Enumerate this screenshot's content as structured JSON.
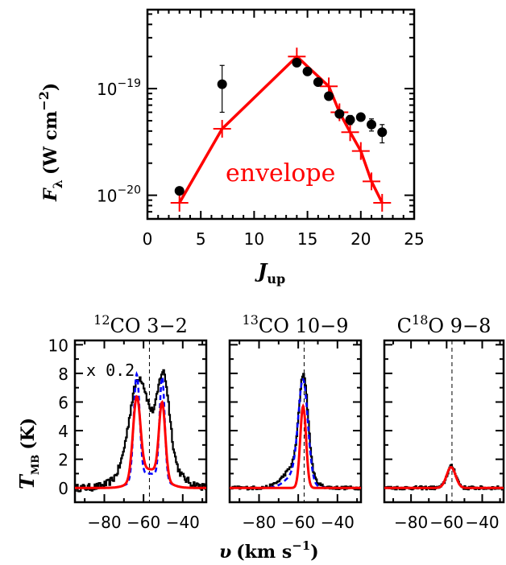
{
  "chart_data": [
    {
      "type": "scatter",
      "panel": "sed",
      "xlabel_main": "J",
      "xlabel_sub": "up",
      "ylabel_main": "F",
      "ylabel_sub": "λ",
      "ylabel_unit": "(W cm",
      "ylabel_sup": "−2",
      "ylabel_close": ")",
      "xlim": [
        0,
        25
      ],
      "ylim": [
        6e-21,
        5.5e-19
      ],
      "yscale": "log",
      "xticks": [
        0,
        5,
        10,
        15,
        20,
        25
      ],
      "xtick_labels": [
        "0",
        "5",
        "10",
        "15",
        "20",
        "25"
      ],
      "yticks": [
        1e-20,
        1e-19
      ],
      "ytick_labels": [
        {
          "base": "10",
          "exp": "−20"
        },
        {
          "base": "10",
          "exp": "−19"
        }
      ],
      "annotation": "envelope",
      "observed": {
        "x": [
          3,
          7,
          14,
          15,
          16,
          17,
          18,
          19,
          20,
          21,
          22
        ],
        "y": [
          1.1e-20,
          1.1e-19,
          1.75e-19,
          1.45e-19,
          1.15e-19,
          8.5e-20,
          5.8e-20,
          5.1e-20,
          5.4e-20,
          4.6e-20,
          3.9e-20
        ],
        "err_low": [
          1.1e-20,
          6e-20,
          1.75e-19,
          1.45e-19,
          1.15e-19,
          8.5e-20,
          5.8e-20,
          4.6e-20,
          5.4e-20,
          4e-20,
          3.1e-20
        ],
        "err_high": [
          1.1e-20,
          1.65e-19,
          1.75e-19,
          1.45e-19,
          1.15e-19,
          8.5e-20,
          5.8e-20,
          5.6e-20,
          5.4e-20,
          5.2e-20,
          4.6e-20
        ],
        "color": "#000000"
      },
      "model": {
        "x": [
          3,
          7,
          14,
          17,
          18,
          19,
          20,
          21,
          22
        ],
        "y": [
          8.5e-21,
          4.2e-20,
          2e-19,
          1.05e-19,
          6e-20,
          3.9e-20,
          2.6e-20,
          1.35e-20,
          8.5e-21
        ],
        "color": "#ff0000"
      }
    },
    {
      "type": "line",
      "panel": "spectrum",
      "title": {
        "pre": "",
        "sup": "12",
        "post": "CO  3−2"
      },
      "annotation": "x  0.2",
      "xlim": [
        -95,
        -28
      ],
      "ylim": [
        -1,
        10.3
      ],
      "xticks": [
        -80,
        -60,
        -40
      ],
      "xtick_labels": [
        "−80",
        "−60",
        "−40"
      ],
      "yticks": [
        0,
        2,
        4,
        6,
        8,
        10
      ],
      "ytick_labels": [
        "0",
        "2",
        "4",
        "6",
        "8",
        "10"
      ],
      "vline": -57,
      "observed": {
        "gaussians": [
          [
            5.0,
            -63,
            4.5
          ],
          [
            5.5,
            -50,
            3.0
          ],
          [
            3.2,
            -57,
            10
          ]
        ],
        "noise": 0.25,
        "color": "#000000"
      },
      "model_envelope": {
        "gaussians": [
          [
            5.6,
            -63.5,
            1.9
          ],
          [
            5.2,
            -50.5,
            1.6
          ],
          [
            1.3,
            -57,
            6.5
          ]
        ],
        "color": "#ff0000"
      },
      "model_alt": {
        "gaussians": [
          [
            7.3,
            -63.5,
            1.5
          ],
          [
            7.1,
            -50.5,
            1.3
          ],
          [
            1.0,
            -57,
            7
          ]
        ],
        "color": "#0000ff"
      }
    },
    {
      "type": "line",
      "panel": "spectrum",
      "title": {
        "pre": "",
        "sup": "13",
        "post": "CO  10−9"
      },
      "xlim": [
        -95,
        -28
      ],
      "ylim": [
        -1,
        10.3
      ],
      "xticks": [
        -80,
        -60,
        -40
      ],
      "xtick_labels": [
        "−80",
        "−60",
        "−40"
      ],
      "vline": -57,
      "observed": {
        "gaussians": [
          [
            6.6,
            -57.5,
            2.3
          ],
          [
            1.6,
            -61,
            6
          ]
        ],
        "noise": 0.12,
        "color": "#000000"
      },
      "model_envelope": {
        "gaussians": [
          [
            5.7,
            -57.5,
            1.5
          ]
        ],
        "color": "#ff0000"
      },
      "model_alt": {
        "gaussians": [
          [
            6.8,
            -57.5,
            2.4
          ],
          [
            1.0,
            -61,
            5
          ]
        ],
        "color": "#0000ff"
      }
    },
    {
      "type": "line",
      "panel": "spectrum",
      "title": {
        "pre": "C",
        "sup": "18",
        "post": "O  9−8"
      },
      "xlim": [
        -95,
        -28
      ],
      "ylim": [
        -1,
        10.3
      ],
      "xticks": [
        -80,
        -60,
        -40
      ],
      "xtick_labels": [
        "−80",
        "−60",
        "−40"
      ],
      "vline": -57,
      "observed": {
        "gaussians": [
          [
            1.5,
            -57.5,
            2.5
          ]
        ],
        "noise": 0.12,
        "color": "#000000"
      },
      "model_envelope": {
        "gaussians": [
          [
            1.45,
            -57.5,
            2.5
          ]
        ],
        "color": "#ff0000"
      },
      "model_alt": {
        "gaussians": [
          [
            1.4,
            -57.5,
            2.6
          ]
        ],
        "color": "#0000ff"
      }
    }
  ],
  "spectra_labels": {
    "ylabel_main": "T",
    "ylabel_sub": "MB",
    "ylabel_unit": "(K)",
    "xlabel_main": "υ",
    "xlabel_unit": "(km s",
    "xlabel_sup": "−1",
    "xlabel_close": ")"
  }
}
